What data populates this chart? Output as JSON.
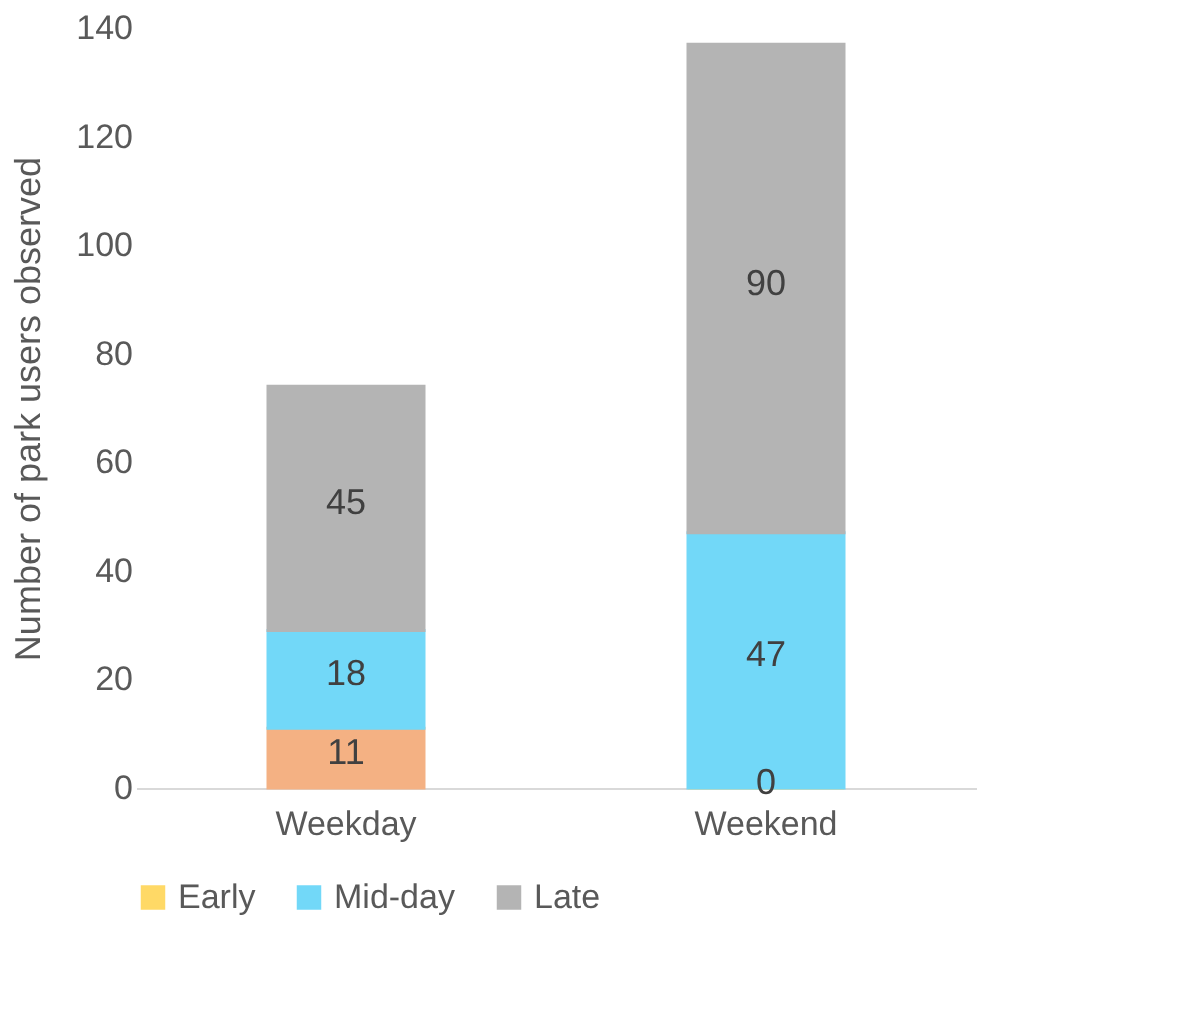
{
  "chart_data": {
    "type": "bar",
    "stacked": true,
    "ylabel": "Number of park users observed",
    "categories": [
      "Weekday",
      "Weekend"
    ],
    "series": [
      {
        "name": "Early",
        "color": "#ffd966",
        "colors": [
          "#f4b183",
          "#ffd966"
        ],
        "values": [
          11,
          0
        ]
      },
      {
        "name": "Mid-day",
        "color": "#72d8f8",
        "values": [
          18,
          47
        ]
      },
      {
        "name": "Late",
        "color": "#b4b4b4",
        "values": [
          45,
          90
        ]
      }
    ],
    "ylim": [
      0,
      140
    ],
    "yticks": [
      0,
      20,
      40,
      60,
      80,
      100,
      120,
      140
    ],
    "grid": false,
    "data_labels": true,
    "legend": "bottom"
  }
}
